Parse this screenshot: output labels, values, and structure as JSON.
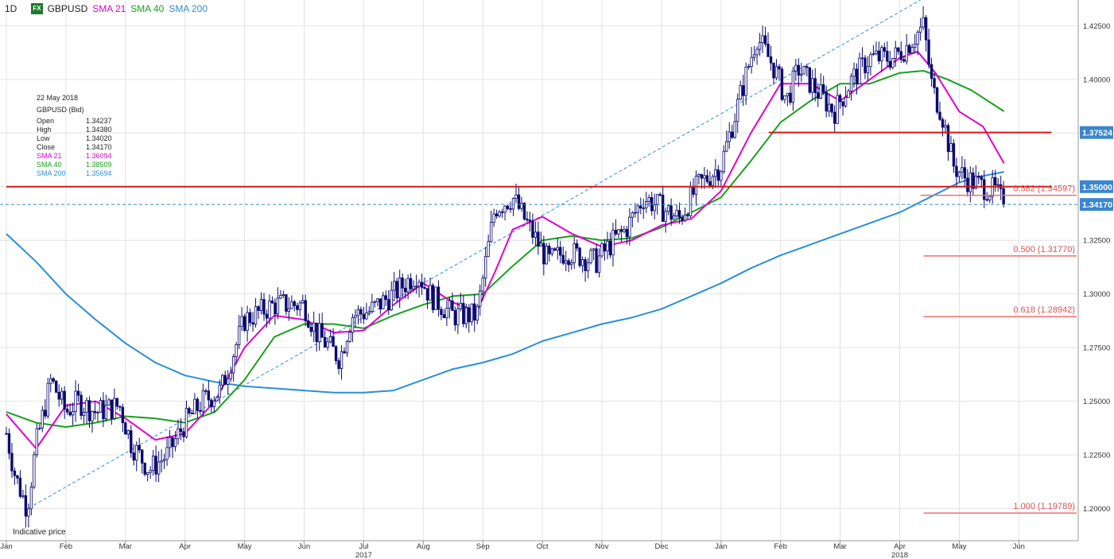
{
  "header": {
    "timeframe": "1D",
    "badge": "FX",
    "symbol": "GBPUSD",
    "sma21_label": "SMA 21",
    "sma40_label": "SMA 40",
    "sma200_label": "SMA 200"
  },
  "info": {
    "date": "22 May 2018",
    "instrument": "GBPUSD (Bid)",
    "rows": [
      {
        "label": "Open",
        "value": "1.34237",
        "color": "#222222"
      },
      {
        "label": "High",
        "value": "1.34380",
        "color": "#222222"
      },
      {
        "label": "Low",
        "value": "1.34020",
        "color": "#222222"
      },
      {
        "label": "Close",
        "value": "1.34170",
        "color": "#222222"
      },
      {
        "label": "SMA 21",
        "value": "1.36094",
        "color": "#e000d0"
      },
      {
        "label": "SMA 40",
        "value": "1.38509",
        "color": "#19a01e"
      },
      {
        "label": "SMA 200",
        "value": "1.35694",
        "color": "#2a8fd8"
      }
    ]
  },
  "footer": {
    "indicative": "Indicative price"
  },
  "colors": {
    "candle": "#0a0a6e",
    "sma21": "#e000d0",
    "sma40": "#19a01e",
    "sma200": "#2a8fd8",
    "trend": "#2a8fd8",
    "level": "#d21a1a",
    "fib": "#f07070",
    "grid": "#e2e2e2",
    "price_tag": "#3a86d0"
  },
  "chart_data": {
    "type": "candlestick",
    "instrument": "GBPUSD",
    "timeframe": "1D",
    "ylim": [
      1.185,
      1.437
    ],
    "y_ticks": [
      1.2,
      1.225,
      1.25,
      1.275,
      1.3,
      1.325,
      1.35,
      1.375,
      1.4,
      1.425
    ],
    "y_tick_labels": [
      "1.20000",
      "1.22500",
      "1.25000",
      "1.27500",
      "1.30000",
      "1.32500",
      "1.35000",
      "1.37500",
      "1.40000",
      "1.42500"
    ],
    "x_labels": [
      {
        "month": 0,
        "label": "Jan"
      },
      {
        "month": 1,
        "label": "Feb"
      },
      {
        "month": 2,
        "label": "Mar"
      },
      {
        "month": 3,
        "label": "Apr"
      },
      {
        "month": 4,
        "label": "May"
      },
      {
        "month": 5,
        "label": "Jun"
      },
      {
        "month": 6,
        "label": "Jul"
      },
      {
        "month": 7,
        "label": "Aug"
      },
      {
        "month": 8,
        "label": "Sep"
      },
      {
        "month": 9,
        "label": "Oct"
      },
      {
        "month": 10,
        "label": "Nov"
      },
      {
        "month": 11,
        "label": "Dec"
      },
      {
        "month": 12,
        "label": "Jan"
      },
      {
        "month": 13,
        "label": "Feb"
      },
      {
        "month": 14,
        "label": "Mar"
      },
      {
        "month": 15,
        "label": "Apr"
      },
      {
        "month": 16,
        "label": "May"
      },
      {
        "month": 17,
        "label": "Jun"
      }
    ],
    "year_labels": [
      {
        "month": 6,
        "label": "2017"
      },
      {
        "month": 15,
        "label": "2018"
      }
    ],
    "x_range_months": [
      0,
      17.55
    ],
    "price_path": [
      [
        0.0,
        1.235
      ],
      [
        0.15,
        1.215
      ],
      [
        0.35,
        1.2
      ],
      [
        0.5,
        1.23
      ],
      [
        0.75,
        1.26
      ],
      [
        1.0,
        1.245
      ],
      [
        1.2,
        1.25
      ],
      [
        1.5,
        1.245
      ],
      [
        1.9,
        1.248
      ],
      [
        2.1,
        1.23
      ],
      [
        2.4,
        1.218
      ],
      [
        2.7,
        1.225
      ],
      [
        3.0,
        1.24
      ],
      [
        3.3,
        1.25
      ],
      [
        3.6,
        1.255
      ],
      [
        4.0,
        1.288
      ],
      [
        4.5,
        1.295
      ],
      [
        5.0,
        1.295
      ],
      [
        5.2,
        1.282
      ],
      [
        5.6,
        1.27
      ],
      [
        5.8,
        1.29
      ],
      [
        6.1,
        1.292
      ],
      [
        6.5,
        1.3
      ],
      [
        6.9,
        1.31
      ],
      [
        7.1,
        1.3
      ],
      [
        7.5,
        1.29
      ],
      [
        7.9,
        1.29
      ],
      [
        8.2,
        1.34
      ],
      [
        8.5,
        1.345
      ],
      [
        8.8,
        1.33
      ],
      [
        9.1,
        1.315
      ],
      [
        9.4,
        1.32
      ],
      [
        9.9,
        1.315
      ],
      [
        10.2,
        1.325
      ],
      [
        10.4,
        1.33
      ],
      [
        10.7,
        1.345
      ],
      [
        11.0,
        1.34
      ],
      [
        11.3,
        1.335
      ],
      [
        11.6,
        1.35
      ],
      [
        12.0,
        1.36
      ],
      [
        12.3,
        1.39
      ],
      [
        12.6,
        1.42
      ],
      [
        12.9,
        1.405
      ],
      [
        13.1,
        1.39
      ],
      [
        13.3,
        1.405
      ],
      [
        13.6,
        1.395
      ],
      [
        13.9,
        1.385
      ],
      [
        14.2,
        1.4
      ],
      [
        14.5,
        1.41
      ],
      [
        14.9,
        1.41
      ],
      [
        15.1,
        1.415
      ],
      [
        15.4,
        1.425
      ],
      [
        15.55,
        1.395
      ],
      [
        15.7,
        1.385
      ],
      [
        15.9,
        1.36
      ],
      [
        16.1,
        1.354
      ],
      [
        16.4,
        1.35
      ],
      [
        16.6,
        1.348
      ],
      [
        16.75,
        1.3417
      ]
    ],
    "last_close": 1.3417,
    "sma21": [
      [
        0.0,
        1.244
      ],
      [
        0.5,
        1.228
      ],
      [
        1.0,
        1.248
      ],
      [
        1.5,
        1.25
      ],
      [
        2.0,
        1.242
      ],
      [
        2.5,
        1.232
      ],
      [
        3.0,
        1.235
      ],
      [
        3.5,
        1.25
      ],
      [
        4.0,
        1.275
      ],
      [
        4.5,
        1.29
      ],
      [
        5.0,
        1.288
      ],
      [
        5.5,
        1.282
      ],
      [
        6.0,
        1.283
      ],
      [
        6.5,
        1.295
      ],
      [
        7.0,
        1.305
      ],
      [
        7.5,
        1.296
      ],
      [
        7.9,
        1.292
      ],
      [
        8.2,
        1.31
      ],
      [
        8.5,
        1.33
      ],
      [
        9.0,
        1.336
      ],
      [
        9.5,
        1.328
      ],
      [
        10.0,
        1.322
      ],
      [
        10.5,
        1.325
      ],
      [
        11.0,
        1.332
      ],
      [
        11.5,
        1.335
      ],
      [
        12.0,
        1.348
      ],
      [
        12.5,
        1.375
      ],
      [
        13.0,
        1.398
      ],
      [
        13.5,
        1.398
      ],
      [
        14.0,
        1.39
      ],
      [
        14.5,
        1.4
      ],
      [
        15.0,
        1.41
      ],
      [
        15.3,
        1.413
      ],
      [
        15.6,
        1.403
      ],
      [
        16.0,
        1.385
      ],
      [
        16.4,
        1.378
      ],
      [
        16.75,
        1.3609
      ]
    ],
    "sma40": [
      [
        0.0,
        1.245
      ],
      [
        0.5,
        1.24
      ],
      [
        1.0,
        1.238
      ],
      [
        1.5,
        1.24
      ],
      [
        2.0,
        1.243
      ],
      [
        2.5,
        1.242
      ],
      [
        3.0,
        1.24
      ],
      [
        3.5,
        1.245
      ],
      [
        4.0,
        1.26
      ],
      [
        4.5,
        1.28
      ],
      [
        5.0,
        1.286
      ],
      [
        5.5,
        1.286
      ],
      [
        6.0,
        1.284
      ],
      [
        6.5,
        1.29
      ],
      [
        7.0,
        1.295
      ],
      [
        7.5,
        1.299
      ],
      [
        8.0,
        1.3
      ],
      [
        8.5,
        1.313
      ],
      [
        9.0,
        1.325
      ],
      [
        9.5,
        1.327
      ],
      [
        10.0,
        1.325
      ],
      [
        10.5,
        1.326
      ],
      [
        11.0,
        1.331
      ],
      [
        11.5,
        1.338
      ],
      [
        12.0,
        1.345
      ],
      [
        12.5,
        1.362
      ],
      [
        13.0,
        1.38
      ],
      [
        13.5,
        1.39
      ],
      [
        14.0,
        1.398
      ],
      [
        14.5,
        1.398
      ],
      [
        15.0,
        1.403
      ],
      [
        15.4,
        1.404
      ],
      [
        15.8,
        1.4
      ],
      [
        16.2,
        1.395
      ],
      [
        16.75,
        1.3851
      ]
    ],
    "sma200": [
      [
        0.0,
        1.328
      ],
      [
        0.5,
        1.315
      ],
      [
        1.0,
        1.3
      ],
      [
        1.5,
        1.288
      ],
      [
        2.0,
        1.277
      ],
      [
        2.5,
        1.268
      ],
      [
        3.0,
        1.262
      ],
      [
        3.5,
        1.259
      ],
      [
        4.0,
        1.257
      ],
      [
        4.5,
        1.256
      ],
      [
        5.0,
        1.255
      ],
      [
        5.5,
        1.254
      ],
      [
        6.0,
        1.254
      ],
      [
        6.5,
        1.255
      ],
      [
        7.0,
        1.26
      ],
      [
        7.5,
        1.265
      ],
      [
        8.0,
        1.268
      ],
      [
        8.5,
        1.272
      ],
      [
        9.0,
        1.278
      ],
      [
        9.5,
        1.282
      ],
      [
        10.0,
        1.286
      ],
      [
        10.5,
        1.289
      ],
      [
        11.0,
        1.293
      ],
      [
        11.5,
        1.299
      ],
      [
        12.0,
        1.305
      ],
      [
        12.5,
        1.312
      ],
      [
        13.0,
        1.318
      ],
      [
        13.5,
        1.323
      ],
      [
        14.0,
        1.328
      ],
      [
        14.5,
        1.333
      ],
      [
        15.0,
        1.338
      ],
      [
        15.5,
        1.345
      ],
      [
        16.0,
        1.352
      ],
      [
        16.4,
        1.355
      ],
      [
        16.75,
        1.3569
      ]
    ],
    "trend_line": [
      [
        0.3,
        1.199
      ],
      [
        15.35,
        1.437
      ]
    ],
    "horizontal_levels": [
      {
        "y": 1.35,
        "from": 0.0,
        "to": 17.55,
        "width": 2.0
      },
      {
        "y": 1.37524,
        "from": 12.8,
        "to": 17.55,
        "width": 2.0
      }
    ],
    "fibonacci": [
      {
        "ratio": "0.382",
        "price": 1.34597,
        "label": "0.382 (1.34597)",
        "from": 15.35
      },
      {
        "ratio": "0.500",
        "price": 1.3177,
        "label": "0.500 (1.31770)",
        "from": 15.4
      },
      {
        "ratio": "0.618",
        "price": 1.28942,
        "label": "0.618 (1.28942)",
        "from": 15.4
      },
      {
        "ratio": "1.000",
        "price": 1.19789,
        "label": "1.000 (1.19789)",
        "from": 15.4
      }
    ],
    "price_tags": [
      {
        "label": "1.37524",
        "value": 1.37524
      },
      {
        "label": "1.35000",
        "value": 1.35
      },
      {
        "label": "1.34170",
        "value": 1.3417
      }
    ]
  }
}
